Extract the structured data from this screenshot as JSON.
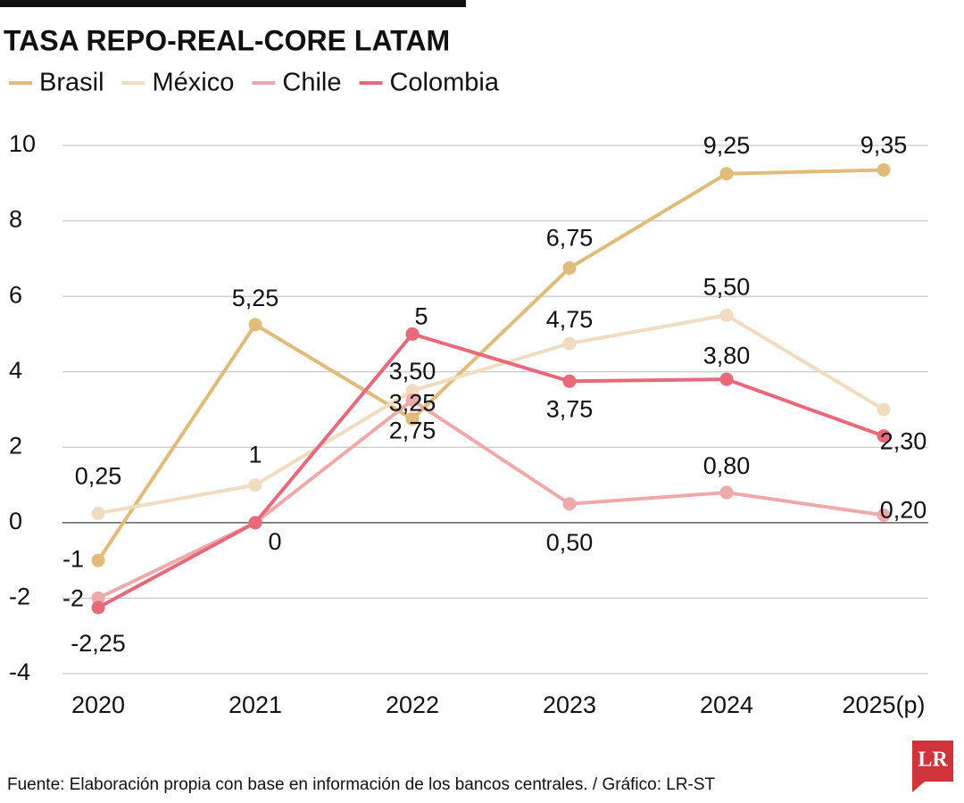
{
  "chart_data": {
    "type": "line",
    "title": "TASA REPO-REAL-CORE LATAM",
    "categories": [
      "2020",
      "2021",
      "2022",
      "2023",
      "2024",
      "2025(p)"
    ],
    "series": [
      {
        "name": "Brasil",
        "color": "#e0bb7a",
        "values": [
          -1,
          5.25,
          2.75,
          6.75,
          9.25,
          9.35
        ],
        "value_labels": [
          "-1",
          "5,25",
          "2,75",
          "6,75",
          "9,25",
          "9,35"
        ]
      },
      {
        "name": "México",
        "color": "#f0dcc0",
        "values": [
          0.25,
          1,
          3.5,
          4.75,
          5.5,
          3
        ],
        "value_labels": [
          "0,25",
          "1",
          "3,50",
          "4,75",
          "5,50",
          null
        ]
      },
      {
        "name": "Chile",
        "color": "#eeaaaa",
        "values": [
          -2,
          0,
          3.25,
          0.5,
          0.8,
          0.2
        ],
        "value_labels": [
          "-2",
          null,
          "3,25",
          "0,50",
          "0,80",
          "0,20"
        ]
      },
      {
        "name": "Colombia",
        "color": "#e8697a",
        "values": [
          -2.25,
          0,
          5,
          3.75,
          3.8,
          2.3
        ],
        "value_labels": [
          "-2,25",
          "0",
          "5",
          "3,75",
          "3,80",
          "2,30"
        ]
      }
    ],
    "ylim": [
      -4,
      10
    ],
    "yticks": [
      -4,
      -2,
      0,
      2,
      4,
      6,
      8,
      10
    ],
    "grid": true,
    "source": "Fuente: Elaboración propia con base en información de los bancos centrales. / Gráfico: LR-ST",
    "logo": "LR"
  }
}
